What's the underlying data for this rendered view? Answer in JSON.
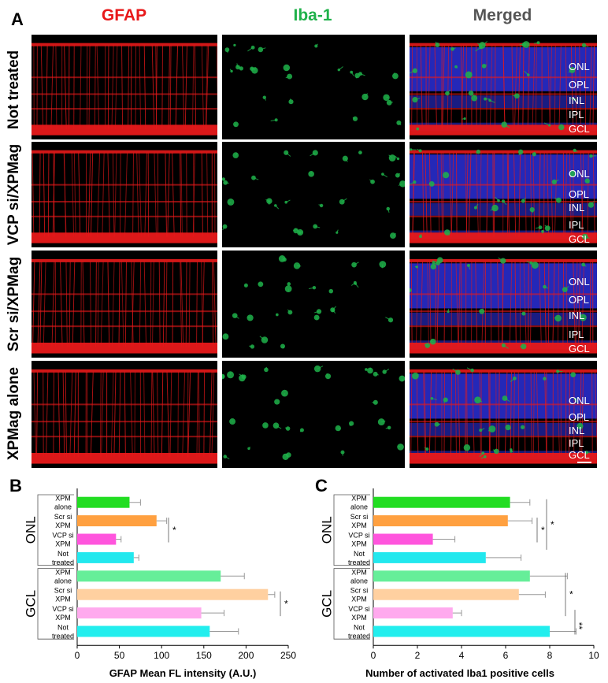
{
  "figure": {
    "panel_a": "A",
    "panel_b": "B",
    "panel_c": "C",
    "column_titles": [
      {
        "label": "GFAP",
        "color": "#e8191a"
      },
      {
        "label": "Iba-1",
        "color": "#1fb14a"
      },
      {
        "label": "Merged",
        "color": "#555555"
      }
    ],
    "row_labels": [
      "Not treated",
      "VCP si/XPMag",
      "Scr si/XPMag",
      "XPMag alone"
    ],
    "merged_layer_labels": [
      [
        "ONL",
        "OPL",
        "INL",
        "IPL",
        "GCL"
      ],
      [
        "ONL",
        "OPL",
        "INL",
        "IPL",
        "GCL"
      ],
      [
        "ONL",
        "OPL",
        "INL",
        "IPL",
        "GCL"
      ],
      [
        "ONL",
        "OPL",
        "INL",
        "IPL",
        "GCL"
      ]
    ],
    "colors": {
      "gfap": "#e8191a",
      "iba1": "#1fb14a",
      "nuclei": "#2a2fd8"
    }
  },
  "chart_data": [
    {
      "type": "bar",
      "orientation": "horizontal",
      "panel": "B",
      "xlabel": "GFAP Mean FL intensity (A.U.)",
      "xlim": [
        0,
        250
      ],
      "xticks": [
        "0",
        "50",
        "100",
        "150",
        "200",
        "250"
      ],
      "groups": [
        "ONL",
        "GCL"
      ],
      "categories": [
        [
          "XPM",
          "alone"
        ],
        [
          "Scr si",
          "XPM"
        ],
        [
          "VCP si",
          "XPM"
        ],
        [
          "Not",
          "treated"
        ],
        [
          "XPM",
          "alone"
        ],
        [
          "Scr si",
          "XPM"
        ],
        [
          "VCP si",
          "XPM"
        ],
        [
          "Not",
          "treated"
        ]
      ],
      "values": [
        62,
        94,
        46,
        67,
        170,
        226,
        147,
        157
      ],
      "errors": [
        13,
        12,
        6,
        6,
        28,
        8,
        27,
        34
      ],
      "bar_colors": [
        "#22dd22",
        "#ffa040",
        "#ff55dd",
        "#22e8ee",
        "#66ee99",
        "#ffd0a0",
        "#ffaaee",
        "#22eeee"
      ],
      "significance": [
        {
          "label": "*",
          "group": "ONL"
        },
        {
          "label": "*",
          "group": "GCL"
        }
      ]
    },
    {
      "type": "bar",
      "orientation": "horizontal",
      "panel": "C",
      "xlabel": "Number of activated Iba1 positive cells",
      "xlim": [
        0,
        10
      ],
      "xticks": [
        "0",
        "2",
        "4",
        "6",
        "8",
        "10"
      ],
      "groups": [
        "ONL",
        "GCL"
      ],
      "categories": [
        [
          "XPM",
          "alone"
        ],
        [
          "Scr si",
          "XPM"
        ],
        [
          "VCP si",
          "XPM"
        ],
        [
          "Not",
          "treated"
        ],
        [
          "XPM",
          "alone"
        ],
        [
          "Scr si",
          "XPM"
        ],
        [
          "VCP si",
          "XPM"
        ],
        [
          "Not",
          "treated"
        ]
      ],
      "values": [
        6.2,
        6.1,
        2.7,
        5.1,
        7.1,
        6.6,
        3.6,
        8.0
      ],
      "errors": [
        0.9,
        1.1,
        1.0,
        1.6,
        1.7,
        1.2,
        0.4,
        1.2
      ],
      "bar_colors": [
        "#22dd22",
        "#ffa040",
        "#ff55dd",
        "#22e8ee",
        "#66ee99",
        "#ffd0a0",
        "#ffaaee",
        "#22eeee"
      ],
      "significance": [
        {
          "label": "*",
          "group": "ONL"
        },
        {
          "label": "*",
          "group": "ONL"
        },
        {
          "label": "*",
          "group": "GCL"
        },
        {
          "label": "**",
          "group": "GCL"
        }
      ]
    }
  ]
}
